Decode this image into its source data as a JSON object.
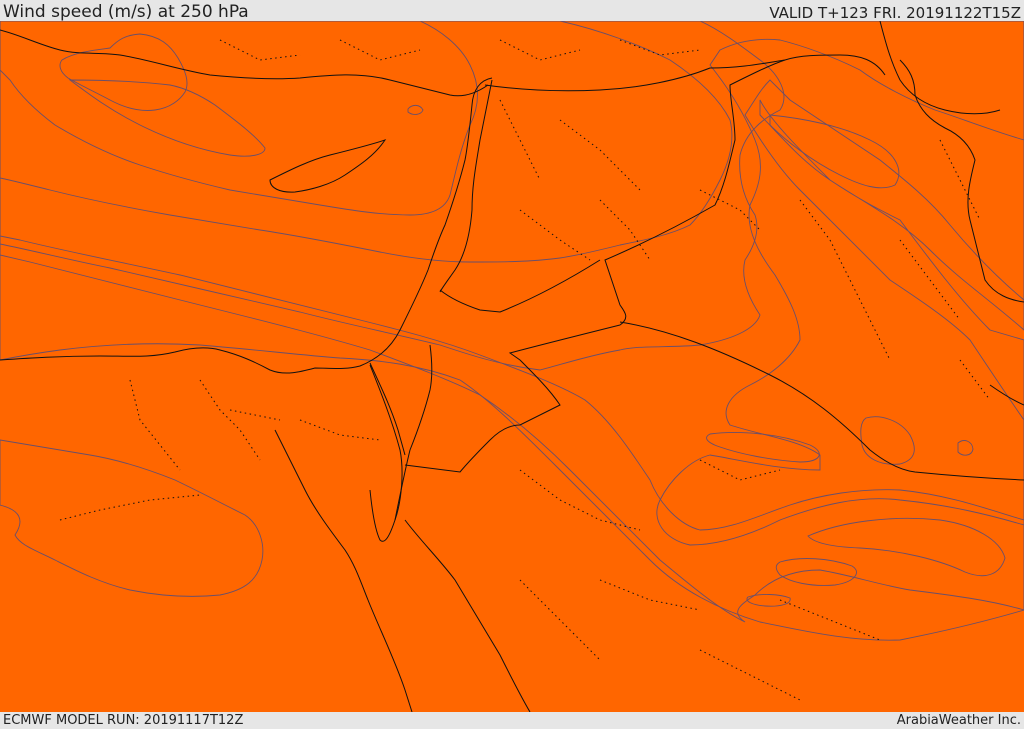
{
  "header": {
    "title": "Wind speed (m/s) at 250 hPa",
    "valid": "VALID T+123 FRI. 20191122T15Z"
  },
  "footer": {
    "model_run": "ECMWF MODEL RUN: 20191117T12Z",
    "brand": "ArabiaWeather Inc."
  },
  "colors": {
    "white": "#ffffff",
    "peach": "#ffd79a",
    "yellow_bright": "#ffff00",
    "yellow": "#ffe000",
    "gold": "#ffc800",
    "amber": "#ffad00",
    "orange_light": "#ff9900",
    "orange": "#ff8800",
    "orange_dark": "#ff6600",
    "red_orange": "#ff4400",
    "contour": "#6a4f6a",
    "background": "#e6e6e6"
  }
}
